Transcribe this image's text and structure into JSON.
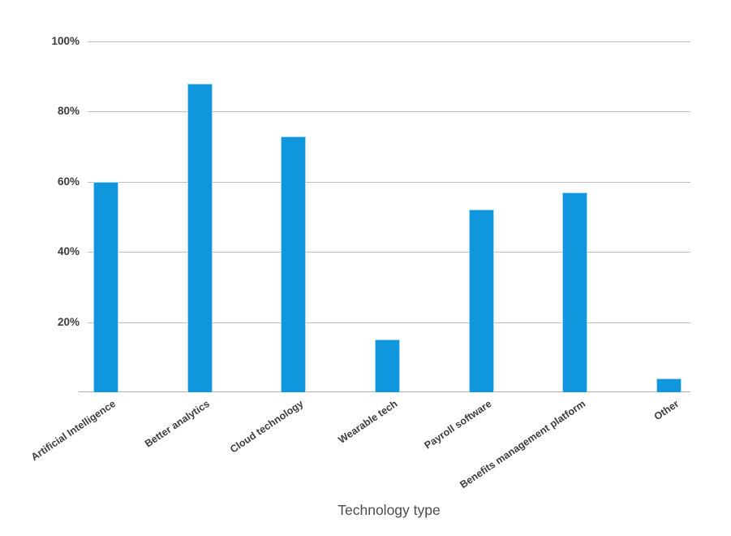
{
  "chart_data": {
    "type": "bar",
    "title": "",
    "xlabel": "Technology type",
    "ylabel": "",
    "unit": "%",
    "categories": [
      "Artificial Intelligence",
      "Better analytics",
      "Cloud technology",
      "Wearable tech",
      "Payroll software",
      "Benefits management platform",
      "Other"
    ],
    "values": [
      60,
      88,
      73,
      15,
      52,
      57,
      4
    ],
    "ylim": [
      0,
      100
    ],
    "yticks": [
      "100%",
      "80%",
      "60%",
      "40%",
      "20%"
    ],
    "ytick_values": [
      100,
      80,
      60,
      40,
      20
    ],
    "grid": true,
    "legend": "none",
    "colors": {
      "bar": "#0f96dc",
      "bar_edge": "#a9d9f3",
      "gridline": "#c0c0c0",
      "axis_line": "#b0b0b0",
      "tick_label": "#3d3d3d",
      "axis_title": "#4c4c4c",
      "background": "#ffffff"
    }
  }
}
